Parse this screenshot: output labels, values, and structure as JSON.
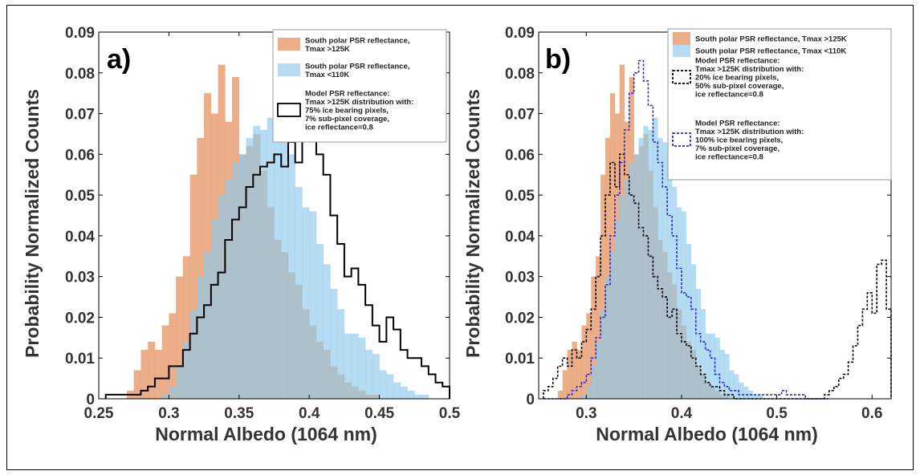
{
  "colors": {
    "south_125": "#e69a6a",
    "south_110": "#8ec9ec",
    "model_a": "#000000",
    "model_b_black": "#000000",
    "model_b_blue": "#2a2ad0"
  },
  "chart_data": [
    {
      "panel_label": "a)",
      "type": "histogram",
      "xlabel": "Normal Albedo (1064 nm)",
      "ylabel": "Probability Normalized Counts",
      "xlim": [
        0.25,
        0.5
      ],
      "ylim": [
        0,
        0.09
      ],
      "xticks": [
        "0.25",
        "0.3",
        "0.35",
        "0.4",
        "0.45",
        "0.5"
      ],
      "yticks": [
        "0",
        "0.01",
        "0.02",
        "0.03",
        "0.04",
        "0.05",
        "0.06",
        "0.07",
        "0.08",
        "0.09"
      ],
      "legend_position": "top-right",
      "legend": [
        {
          "key": "south_125",
          "lines": [
            "South polar PSR reflectance,",
            "Tmax >125K"
          ]
        },
        {
          "key": "south_110",
          "lines": [
            "South polar PSR reflectance,",
            "Tmax <110K"
          ]
        },
        {
          "key": "model_a",
          "lines": [
            "Model PSR reflectance:",
            "Tmax >125K distribution with:",
            "75% ice bearing pixels,",
            "7% sub-pixel coverage,",
            "ice reflectance=0.8"
          ]
        }
      ],
      "bin_start": 0.255,
      "bin_width": 0.005,
      "series": [
        {
          "key": "south_125",
          "style": "filled",
          "values": [
            0.0,
            0.0,
            0.0,
            0.002,
            0.007,
            0.012,
            0.014,
            0.012,
            0.018,
            0.021,
            0.03,
            0.035,
            0.055,
            0.064,
            0.075,
            0.07,
            0.082,
            0.068,
            0.079,
            0.06,
            0.062,
            0.065,
            0.056,
            0.047,
            0.039,
            0.036,
            0.031,
            0.028,
            0.022,
            0.018,
            0.014,
            0.012,
            0.008,
            0.006,
            0.004,
            0.003,
            0.002,
            0.001,
            0.001,
            0.0,
            0.0,
            0.0,
            0.0,
            0.0,
            0.0,
            0.0,
            0.0,
            0.0,
            0.0
          ]
        },
        {
          "key": "south_110",
          "style": "filled",
          "values": [
            0.0,
            0.0,
            0.0,
            0.0,
            0.0,
            0.0,
            0.0,
            0.0,
            0.001,
            0.003,
            0.008,
            0.014,
            0.022,
            0.03,
            0.036,
            0.044,
            0.05,
            0.054,
            0.058,
            0.06,
            0.064,
            0.067,
            0.066,
            0.069,
            0.064,
            0.063,
            0.06,
            0.052,
            0.047,
            0.046,
            0.038,
            0.033,
            0.027,
            0.022,
            0.016,
            0.016,
            0.015,
            0.012,
            0.011,
            0.007,
            0.006,
            0.004,
            0.003,
            0.002,
            0.001,
            0.001,
            0.0,
            0.0,
            0.0
          ]
        },
        {
          "key": "model_a",
          "style": "step",
          "values": [
            0.001,
            0.001,
            0.001,
            0.001,
            0.001,
            0.002,
            0.003,
            0.005,
            0.005,
            0.008,
            0.008,
            0.012,
            0.016,
            0.02,
            0.023,
            0.028,
            0.031,
            0.039,
            0.044,
            0.047,
            0.052,
            0.055,
            0.057,
            0.058,
            0.06,
            0.057,
            0.063,
            0.058,
            0.07,
            0.07,
            0.06,
            0.055,
            0.045,
            0.038,
            0.03,
            0.032,
            0.028,
            0.023,
            0.018,
            0.014,
            0.02,
            0.017,
            0.012,
            0.01,
            0.01,
            0.008,
            0.006,
            0.004,
            0.003,
            0.002,
            0.002,
            0.001,
            0.001,
            0.001,
            0.001,
            0.001,
            0.001,
            0.001,
            0.001
          ]
        }
      ]
    },
    {
      "panel_label": "b)",
      "type": "histogram",
      "xlabel": "Normal Albedo (1064 nm)",
      "ylabel": "Probability Normalized Counts",
      "xlim": [
        0.25,
        0.62
      ],
      "ylim": [
        0,
        0.09
      ],
      "xticks": [
        "0.3",
        "0.4",
        "0.5",
        "0.6"
      ],
      "yticks": [
        "0",
        "0.01",
        "0.02",
        "0.03",
        "0.04",
        "0.05",
        "0.06",
        "0.07",
        "0.08",
        "0.09"
      ],
      "legend_position": "top-right",
      "legend": [
        {
          "key": "south_125",
          "lines": [
            "South polar PSR reflectance, Tmax >125K"
          ]
        },
        {
          "key": "south_110",
          "lines": [
            "South polar PSR reflectance, Tmax <110K"
          ]
        },
        {
          "key": "model_b_black",
          "lines": [
            "Model PSR reflectance:",
            "Tmax >125K distribution with:",
            "20% ice bearing pixels,",
            "50% sub-pixel coverage,",
            "ice reflectance=0.8"
          ]
        },
        {
          "key": "model_b_blue",
          "lines": [
            "Model PSR reflectance:",
            "Tmax >125K distribution with:",
            "100% ice bearing pixels,",
            "7% sub-pixel coverage,",
            "ice reflectance=0.8"
          ]
        }
      ],
      "bin_start": 0.255,
      "bin_width": 0.005,
      "series": [
        {
          "key": "south_125",
          "style": "filled",
          "values": [
            0.0,
            0.0,
            0.0,
            0.002,
            0.007,
            0.012,
            0.014,
            0.012,
            0.018,
            0.021,
            0.03,
            0.035,
            0.055,
            0.064,
            0.075,
            0.07,
            0.082,
            0.068,
            0.079,
            0.06,
            0.062,
            0.065,
            0.056,
            0.047,
            0.039,
            0.036,
            0.031,
            0.028,
            0.022,
            0.018,
            0.014,
            0.012,
            0.008,
            0.006,
            0.004,
            0.003,
            0.002,
            0.001,
            0.001,
            0.0,
            0.0,
            0.0,
            0.0,
            0.0,
            0.0,
            0.0,
            0.0,
            0.0,
            0.0
          ]
        },
        {
          "key": "south_110",
          "style": "filled",
          "values": [
            0.0,
            0.0,
            0.0,
            0.0,
            0.0,
            0.0,
            0.0,
            0.0,
            0.001,
            0.003,
            0.008,
            0.014,
            0.022,
            0.03,
            0.036,
            0.044,
            0.05,
            0.054,
            0.058,
            0.06,
            0.064,
            0.067,
            0.066,
            0.069,
            0.064,
            0.063,
            0.06,
            0.052,
            0.047,
            0.046,
            0.038,
            0.033,
            0.027,
            0.022,
            0.016,
            0.016,
            0.015,
            0.012,
            0.011,
            0.007,
            0.006,
            0.004,
            0.003,
            0.002,
            0.001,
            0.001,
            0.0,
            0.0,
            0.0
          ]
        },
        {
          "key": "model_b_black",
          "style": "dashed-step",
          "values": [
            0.002,
            0.003,
            0.005,
            0.008,
            0.01,
            0.008,
            0.012,
            0.01,
            0.014,
            0.017,
            0.022,
            0.03,
            0.04,
            0.05,
            0.058,
            0.052,
            0.06,
            0.055,
            0.05,
            0.048,
            0.042,
            0.04,
            0.035,
            0.03,
            0.027,
            0.025,
            0.02,
            0.022,
            0.016,
            0.014,
            0.013,
            0.01,
            0.008,
            0.006,
            0.004,
            0.003,
            0.003,
            0.002,
            0.001,
            0.001,
            0.0,
            0.0,
            0.0,
            0.0,
            0.0,
            0.0,
            0.0,
            0.0,
            0.0,
            0.0,
            0.0,
            0.0,
            0.0,
            0.0,
            0.0,
            0.0,
            0.0,
            0.0,
            0.0,
            0.001,
            0.002,
            0.003,
            0.005,
            0.006,
            0.009,
            0.013,
            0.018,
            0.022,
            0.026,
            0.021,
            0.033,
            0.034,
            0.022,
            0.017,
            0.012,
            0.01,
            0.006,
            0.004,
            0.002,
            0.001
          ]
        },
        {
          "key": "model_b_blue",
          "style": "dashed-step",
          "values": [
            0.0,
            0.0,
            0.0,
            0.0,
            0.0,
            0.001,
            0.002,
            0.003,
            0.004,
            0.006,
            0.01,
            0.015,
            0.02,
            0.028,
            0.04,
            0.05,
            0.058,
            0.066,
            0.075,
            0.08,
            0.083,
            0.078,
            0.072,
            0.063,
            0.058,
            0.052,
            0.045,
            0.04,
            0.032,
            0.026,
            0.025,
            0.022,
            0.016,
            0.014,
            0.012,
            0.01,
            0.006,
            0.004,
            0.003,
            0.002,
            0.002,
            0.001,
            0.001,
            0.001,
            0.001,
            0.001,
            0.001,
            0.001,
            0.001,
            0.001,
            0.002,
            0.001,
            0.001,
            0.001,
            0.001,
            0.0,
            0.0,
            0.0,
            0.0,
            0.0
          ]
        }
      ]
    }
  ]
}
